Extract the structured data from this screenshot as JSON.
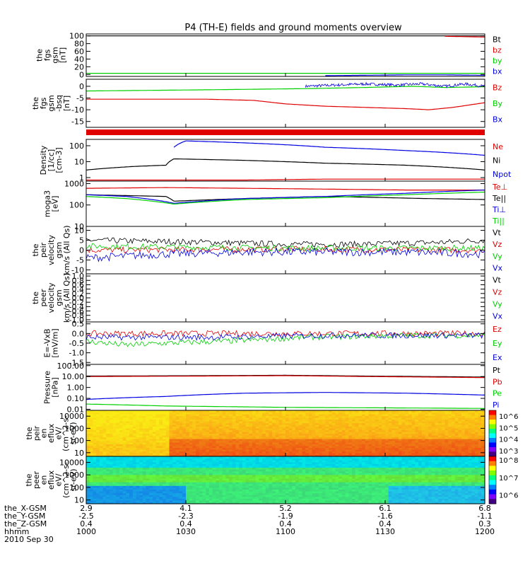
{
  "title": "P4 (TH-E) fields and ground moments overview",
  "colors": {
    "black": "#000000",
    "red": "#e00000",
    "green": "#00d000",
    "blue": "#0000e0",
    "white": "#ffffff"
  },
  "chart_data": [
    {
      "type": "line",
      "ylabel": [
        "the",
        "fgs",
        "gsm",
        "[nT]"
      ],
      "yticks": [
        "100",
        "80",
        "60",
        "40",
        "20",
        "0"
      ],
      "ytick_values": [
        100,
        80,
        60,
        40,
        20,
        0
      ],
      "ylim": [
        -5,
        105
      ],
      "series": [
        {
          "name": "Bt",
          "color": "#000000",
          "values": [
            [
              0,
              null
            ],
            [
              0.9,
              100
            ],
            [
              1,
              100
            ]
          ]
        },
        {
          "name": "bz",
          "color": "#e00000",
          "values": [
            [
              0.9,
              99
            ],
            [
              1,
              97
            ]
          ]
        },
        {
          "name": "by",
          "color": "#00d000",
          "values": [
            [
              0,
              3
            ],
            [
              0.2,
              3
            ],
            [
              0.4,
              3
            ],
            [
              0.6,
              3
            ],
            [
              0.8,
              3
            ],
            [
              1,
              3
            ]
          ]
        },
        {
          "name": "bx",
          "color": "#0000e0",
          "values": [
            [
              0.6,
              -3
            ],
            [
              0.7,
              -2
            ],
            [
              0.8,
              -1
            ],
            [
              0.9,
              -1
            ],
            [
              1,
              -2
            ]
          ]
        }
      ]
    },
    {
      "type": "line",
      "ylabel": [
        "the",
        "fgs",
        "gsm",
        "-bsq",
        "[nT]"
      ],
      "yticks": [
        "0",
        "-5",
        "-10",
        "-15"
      ],
      "ytick_values": [
        0,
        -5,
        -10,
        -15
      ],
      "ylim": [
        -17.5,
        3
      ],
      "series": [
        {
          "name": "Bz",
          "color": "#e00000",
          "values": [
            [
              0,
              -5.5
            ],
            [
              0.3,
              -5.5
            ],
            [
              0.42,
              -6
            ],
            [
              0.5,
              -7.5
            ],
            [
              0.6,
              -8.5
            ],
            [
              0.7,
              -9
            ],
            [
              0.8,
              -9.5
            ],
            [
              0.86,
              -10
            ],
            [
              0.92,
              -9
            ],
            [
              1,
              -7
            ]
          ]
        },
        {
          "name": "By",
          "color": "#00d000",
          "values": [
            [
              0,
              -2
            ],
            [
              0.3,
              -1.5
            ],
            [
              0.55,
              -1
            ],
            [
              0.7,
              -0.5
            ],
            [
              0.82,
              0
            ],
            [
              0.9,
              -0.5
            ],
            [
              1,
              -0.2
            ]
          ]
        },
        {
          "name": "Bx",
          "color": "#0000e0",
          "values": [
            [
              0.55,
              0
            ],
            [
              0.62,
              0.5
            ],
            [
              0.7,
              1
            ],
            [
              0.78,
              0.5
            ],
            [
              0.84,
              1
            ],
            [
              0.9,
              0
            ],
            [
              0.95,
              1
            ],
            [
              1,
              0
            ]
          ]
        }
      ]
    },
    {
      "type": "line",
      "ylabel": [
        "Density",
        "[1/cc]",
        "[cm-3]"
      ],
      "yticks": [
        "100",
        "10",
        "1"
      ],
      "ytick_values": [
        100,
        10,
        1
      ],
      "ylim": [
        0.6,
        250
      ],
      "yscale": "log",
      "series": [
        {
          "name": "Ne",
          "color": "#e00000",
          "values": [
            [
              0,
              0.7
            ],
            [
              0.2,
              0.7
            ],
            [
              0.4,
              0.7
            ],
            [
              0.6,
              0.8
            ],
            [
              0.8,
              0.8
            ],
            [
              1,
              0.8
            ]
          ]
        },
        {
          "name": "Ni",
          "color": "#000000",
          "values": [
            [
              0,
              3
            ],
            [
              0.12,
              5
            ],
            [
              0.2,
              6
            ],
            [
              0.22,
              15
            ],
            [
              0.4,
              12
            ],
            [
              0.6,
              8
            ],
            [
              0.8,
              6
            ],
            [
              1,
              3
            ]
          ]
        },
        {
          "name": "Npot",
          "color": "#0000e0",
          "values": [
            [
              0.22,
              80
            ],
            [
              0.25,
              200
            ],
            [
              0.4,
              150
            ],
            [
              0.6,
              80
            ],
            [
              0.8,
              50
            ],
            [
              1,
              25
            ]
          ]
        }
      ]
    },
    {
      "type": "line",
      "ylabel": [
        "moga3",
        "[eV]"
      ],
      "yticks": [
        "1000",
        "100",
        "10"
      ],
      "ytick_values": [
        1000,
        100,
        10
      ],
      "ylim": [
        10,
        1300
      ],
      "yscale": "log",
      "series": [
        {
          "name": "Te⊥",
          "color": "#e00000",
          "values": [
            [
              0,
              600
            ],
            [
              0.2,
              650
            ],
            [
              0.4,
              600
            ],
            [
              0.6,
              550
            ],
            [
              0.8,
              500
            ],
            [
              1,
              500
            ]
          ]
        },
        {
          "name": "Te||",
          "color": "#000000",
          "values": [
            [
              0,
              300
            ],
            [
              0.2,
              250
            ],
            [
              0.22,
              150
            ],
            [
              0.4,
              200
            ],
            [
              0.6,
              250
            ],
            [
              0.85,
              200
            ],
            [
              1,
              180
            ]
          ]
        },
        {
          "name": "Ti⊥",
          "color": "#0000e0",
          "values": [
            [
              0,
              300
            ],
            [
              0.1,
              250
            ],
            [
              0.22,
              120
            ],
            [
              0.4,
              200
            ],
            [
              0.6,
              250
            ],
            [
              0.8,
              350
            ],
            [
              1,
              500
            ]
          ]
        },
        {
          "name": "Ti||",
          "color": "#00d000",
          "values": [
            [
              0,
              250
            ],
            [
              0.1,
              200
            ],
            [
              0.22,
              110
            ],
            [
              0.4,
              180
            ],
            [
              0.6,
              220
            ],
            [
              0.8,
              300
            ],
            [
              1,
              400
            ]
          ]
        }
      ]
    },
    {
      "type": "line",
      "ylabel": [
        "the",
        "peir",
        "velocity",
        "gsm",
        "km/s (All Qs)"
      ],
      "yticks": [
        "10",
        "5",
        "0",
        "-5",
        "-10"
      ],
      "ytick_values": [
        10,
        5,
        0,
        -5,
        -10
      ],
      "ylim": [
        -12,
        12
      ],
      "series": [
        {
          "name": "Vt",
          "color": "#000000",
          "values": [
            [
              0,
              5
            ],
            [
              0.3,
              4
            ],
            [
              0.5,
              3
            ],
            [
              0.7,
              3
            ],
            [
              0.9,
              4
            ],
            [
              1,
              5
            ]
          ]
        },
        {
          "name": "Vz",
          "color": "#e00000",
          "values": [
            [
              0,
              0
            ],
            [
              0.5,
              0.5
            ],
            [
              1,
              0
            ]
          ]
        },
        {
          "name": "Vy",
          "color": "#00d000",
          "values": [
            [
              0,
              2
            ],
            [
              0.5,
              1
            ],
            [
              1,
              1
            ]
          ]
        },
        {
          "name": "Vx",
          "color": "#0000e0",
          "values": [
            [
              0,
              -4
            ],
            [
              0.2,
              -2
            ],
            [
              0.4,
              -1
            ],
            [
              0.6,
              -1
            ],
            [
              0.8,
              -1
            ],
            [
              1,
              -2
            ]
          ]
        }
      ]
    },
    {
      "type": "line",
      "ylabel": [
        "the",
        "peer",
        "velocity",
        "gsm",
        "km/s (All Qs)"
      ],
      "yticks": [
        "1.0",
        "0.8",
        "0.6",
        "0.4",
        "0.2",
        "0.0",
        "-0.2",
        "-0.4",
        "-0.6",
        "-0.8",
        "-1.0"
      ],
      "ytick_values": [
        1,
        0.8,
        0.6,
        0.4,
        0.2,
        0,
        -0.2,
        -0.4,
        -0.6,
        -0.8,
        -1
      ],
      "ylim": [
        -1.1,
        1.1
      ],
      "series": [
        {
          "name": "Vt",
          "color": "#000000",
          "values": []
        },
        {
          "name": "Vz",
          "color": "#e00000",
          "values": []
        },
        {
          "name": "Vy",
          "color": "#00d000",
          "values": []
        },
        {
          "name": "Vx",
          "color": "#0000e0",
          "values": []
        }
      ]
    },
    {
      "type": "line",
      "ylabel": [
        "E=-VxB",
        "[mV/m]"
      ],
      "yticks": [
        "0.5",
        "0.0",
        "-0.5",
        "-1.0",
        "-1.5"
      ],
      "ytick_values": [
        0.5,
        0,
        -0.5,
        -1,
        -1.5
      ],
      "ylim": [
        -1.6,
        0.6
      ],
      "series": [
        {
          "name": "Ez",
          "color": "#e00000",
          "values": [
            [
              0,
              0
            ],
            [
              1,
              0
            ]
          ]
        },
        {
          "name": "Ey",
          "color": "#00d000",
          "values": [
            [
              0,
              -0.4
            ],
            [
              0.1,
              -0.6
            ],
            [
              0.2,
              -0.5
            ],
            [
              0.35,
              -0.4
            ],
            [
              0.55,
              -0.2
            ],
            [
              0.8,
              -0.1
            ],
            [
              1,
              -0.1
            ]
          ]
        },
        {
          "name": "Ex",
          "color": "#0000e0",
          "values": [
            [
              0,
              -0.2
            ],
            [
              0.3,
              -0.2
            ],
            [
              0.6,
              -0.1
            ],
            [
              1,
              -0.1
            ]
          ]
        }
      ]
    },
    {
      "type": "line",
      "ylabel": [
        "Pressure",
        "[nPa]"
      ],
      "yticks": [
        "100.00",
        "10.00",
        "1.00",
        "0.10",
        "0.01"
      ],
      "ytick_values": [
        100,
        10,
        1,
        0.1,
        0.01
      ],
      "ylim": [
        0.008,
        130
      ],
      "yscale": "log",
      "series": [
        {
          "name": "Pt",
          "color": "#000000",
          "values": [
            [
              0,
              11
            ],
            [
              0.3,
              12
            ],
            [
              0.5,
              13
            ],
            [
              0.7,
              11
            ],
            [
              1,
              9
            ]
          ]
        },
        {
          "name": "Pb",
          "color": "#e00000",
          "values": [
            [
              0,
              10
            ],
            [
              0.3,
              11
            ],
            [
              0.5,
              12
            ],
            [
              0.7,
              10
            ],
            [
              1,
              8
            ]
          ]
        },
        {
          "name": "Pe",
          "color": "#00d000",
          "values": [
            [
              0,
              0.03
            ],
            [
              0.2,
              0.02
            ],
            [
              0.5,
              0.015
            ],
            [
              1,
              0.012
            ]
          ]
        },
        {
          "name": "Pi",
          "color": "#0000e0",
          "values": [
            [
              0,
              0.08
            ],
            [
              0.2,
              0.15
            ],
            [
              0.4,
              0.3
            ],
            [
              0.6,
              0.35
            ],
            [
              0.8,
              0.3
            ],
            [
              1,
              0.2
            ]
          ]
        }
      ]
    },
    {
      "type": "heatmap",
      "ylabel": [
        "the",
        "peir",
        "en",
        "eflux",
        "eV/",
        "(cm^2-s-",
        "sr-eV)"
      ],
      "yticks": [
        "10000",
        "1000",
        "100",
        "10"
      ],
      "ytick_values": [
        10000,
        1000,
        100,
        10
      ],
      "ylim": [
        5,
        30000
      ],
      "yscale": "log",
      "colorbar": {
        "ticks": [
          "10^6",
          "10^5",
          "10^4",
          "10^3"
        ],
        "exponents": [
          6,
          5,
          4,
          3
        ],
        "range": [
          2.5,
          6.5
        ]
      }
    },
    {
      "type": "heatmap",
      "ylabel": [
        "the",
        "peer",
        "en",
        "eflux",
        "eV/",
        "(cm^2-s-",
        "sr-eV)"
      ],
      "yticks": [
        "10000",
        "1000",
        "100",
        "10"
      ],
      "ytick_values": [
        10000,
        1000,
        100,
        10
      ],
      "ylim": [
        5,
        30000
      ],
      "yscale": "log",
      "colorbar": {
        "ticks": [
          "10^8",
          "10^7",
          "10^6"
        ],
        "exponents": [
          8,
          7,
          6
        ],
        "range": [
          5.5,
          8.2
        ]
      }
    }
  ],
  "x_axis": {
    "labels": [
      "the_X-GSM",
      "the_Y-GSM",
      "the_Z-GSM",
      "hhmm",
      "2010 Sep 30"
    ],
    "columns": [
      {
        "values": [
          "2.9",
          "-2.5",
          "0.4",
          "1000"
        ]
      },
      {
        "values": [
          "4.1",
          "-2.3",
          "0.4",
          "1030"
        ]
      },
      {
        "values": [
          "5.2",
          "-1.9",
          "0.4",
          "1100"
        ]
      },
      {
        "values": [
          "6.1",
          "-1.6",
          "0.4",
          "1130"
        ]
      },
      {
        "values": [
          "6.8",
          "-1.1",
          "0.3",
          "1200"
        ]
      }
    ]
  }
}
